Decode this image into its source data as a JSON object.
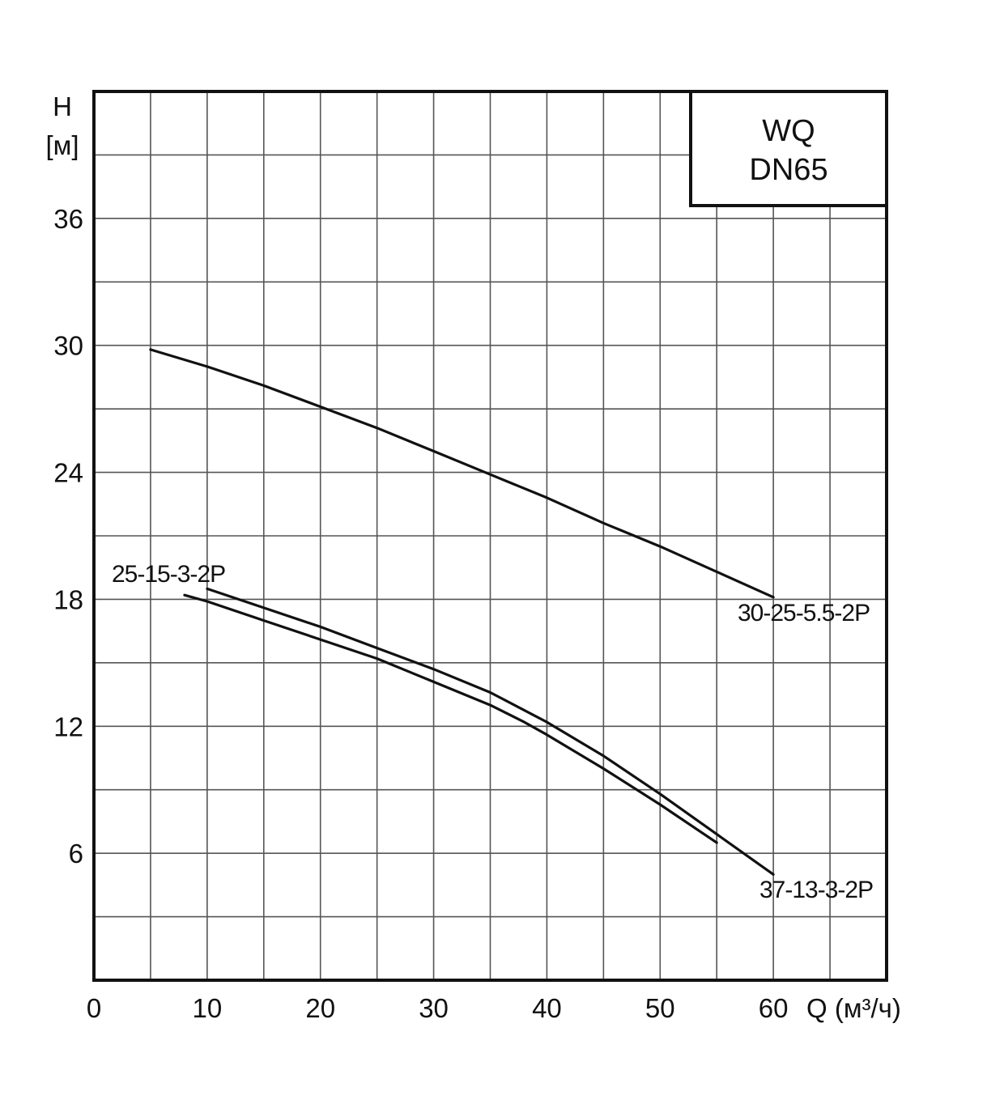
{
  "chart_data": {
    "type": "line",
    "title": [
      "WQ",
      "DN65"
    ],
    "ylabel": [
      "H",
      "[м]"
    ],
    "xlabel": "Q (м³/ч)",
    "xlim": [
      0,
      70
    ],
    "ylim": [
      0,
      42
    ],
    "x_ticks": [
      0,
      10,
      20,
      30,
      40,
      50,
      60
    ],
    "y_ticks": [
      6,
      12,
      18,
      24,
      30,
      36
    ],
    "grid": true,
    "series": [
      {
        "name": "30-25-5.5-2P",
        "x": [
          5,
          10,
          15,
          20,
          25,
          30,
          35,
          40,
          45,
          50,
          55,
          60
        ],
        "y": [
          29.8,
          29.0,
          28.1,
          27.1,
          26.1,
          25.0,
          23.9,
          22.8,
          21.6,
          20.5,
          19.3,
          18.1
        ]
      },
      {
        "name": "25-15-3-2P",
        "x": [
          8,
          10,
          15,
          20,
          25,
          30,
          35,
          38,
          40,
          45,
          50,
          55
        ],
        "y": [
          18.2,
          17.9,
          17.0,
          16.1,
          15.2,
          14.1,
          13.0,
          12.2,
          11.6,
          10.0,
          8.3,
          6.5
        ]
      },
      {
        "name": "37-13-3-2P",
        "x": [
          10,
          15,
          20,
          25,
          30,
          35,
          40,
          45,
          50,
          55,
          60
        ],
        "y": [
          18.5,
          17.6,
          16.7,
          15.7,
          14.7,
          13.6,
          12.2,
          10.6,
          8.8,
          6.9,
          5.0
        ]
      }
    ]
  }
}
